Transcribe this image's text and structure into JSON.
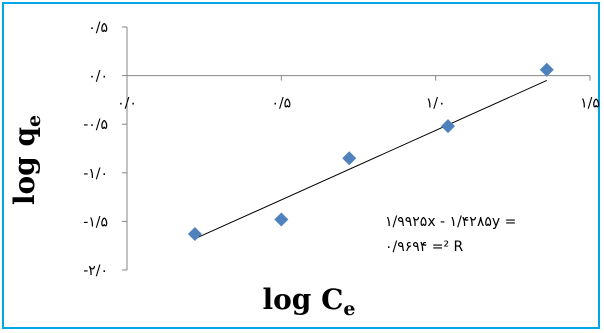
{
  "chart_data": {
    "type": "scatter",
    "x": [
      0.22,
      0.5,
      0.72,
      1.04,
      1.36
    ],
    "y": [
      -1.63,
      -1.48,
      -0.85,
      -0.52,
      0.06
    ],
    "fit": {
      "slope": 1.4285,
      "intercept": -1.9925,
      "x_range": [
        0.22,
        1.36
      ]
    },
    "equation_lines": [
      "۱/۹۹۲۵x - ۱/۴۲۸۵y =",
      "۰/۹۶۹۴ =² R"
    ],
    "xlabel": "log C",
    "xlabel_sub": "e",
    "ylabel": "log q",
    "ylabel_sub": "e",
    "xlim": [
      0.0,
      1.5
    ],
    "ylim": [
      -2.0,
      0.5
    ],
    "x_ticks": [
      {
        "value": 0.0,
        "label": "۰/۰"
      },
      {
        "value": 0.5,
        "label": "۰/۵"
      },
      {
        "value": 1.0,
        "label": "۱/۰"
      },
      {
        "value": 1.5,
        "label": "۱/۵"
      }
    ],
    "y_ticks": [
      {
        "value": 0.5,
        "label": "۰/۵"
      },
      {
        "value": 0.0,
        "label": "۰/۰"
      },
      {
        "value": -0.5,
        "label": "-۰/۵"
      },
      {
        "value": -1.0,
        "label": "-۱/۰"
      },
      {
        "value": -1.5,
        "label": "-۱/۵"
      },
      {
        "value": -2.0,
        "label": "-۲/۰"
      }
    ],
    "grid": false,
    "colors": {
      "marker": "#4f81bd",
      "line": "#000000",
      "axis": "#868686",
      "border": "#00a6e6"
    }
  }
}
